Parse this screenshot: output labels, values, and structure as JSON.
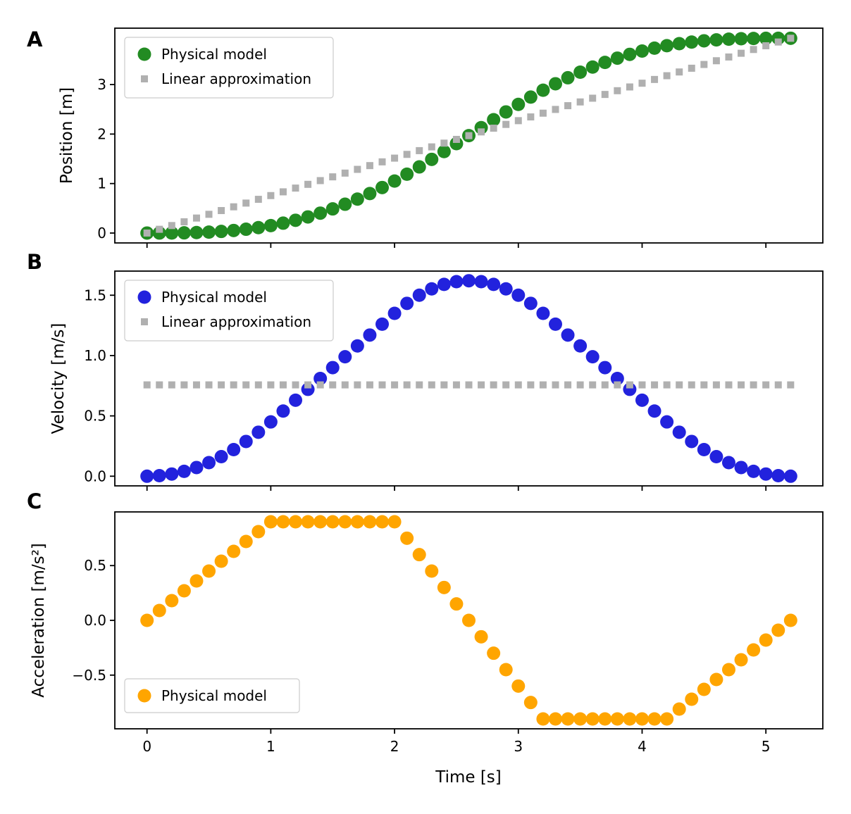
{
  "chart_data": {
    "type": "scatter",
    "xlabel": "Time [s]",
    "xlim": [
      -0.26,
      5.46
    ],
    "xticks": [
      0,
      1,
      2,
      3,
      4,
      5
    ],
    "xtick_labels": [
      "0",
      "1",
      "2",
      "3",
      "4",
      "5"
    ],
    "t": [
      0,
      0.1,
      0.2,
      0.3,
      0.4,
      0.5,
      0.6,
      0.7,
      0.8,
      0.9,
      1,
      1.1,
      1.2,
      1.3,
      1.4,
      1.5,
      1.6,
      1.7,
      1.8,
      1.9,
      2,
      2.1,
      2.2,
      2.3,
      2.4,
      2.5,
      2.6,
      2.7,
      2.8,
      2.9,
      3,
      3.1,
      3.2,
      3.3,
      3.4,
      3.5,
      3.6,
      3.7,
      3.8,
      3.9,
      4,
      4.1,
      4.2,
      4.3,
      4.4,
      4.5,
      4.6,
      4.7,
      4.8,
      4.9,
      5,
      5.1,
      5.2
    ],
    "panels": [
      {
        "letter": "A",
        "ylabel": "Position [m]",
        "ylim": [
          -0.2,
          4.14
        ],
        "yticks": [
          0,
          1,
          2,
          3
        ],
        "ytick_labels": [
          "0",
          "1",
          "2",
          "3"
        ],
        "legend_position": "upper left",
        "series": [
          {
            "name": "Physical model",
            "marker": "circle",
            "color": "#228b22",
            "values": [
              0,
              0.0002,
              0.0012,
              0.004,
              0.0096,
              0.0188,
              0.0324,
              0.0514,
              0.0768,
              0.1094,
              0.15,
              0.1995,
              0.258,
              0.3255,
              0.402,
              0.4875,
              0.582,
              0.6855,
              0.798,
              0.9195,
              1.05,
              1.1893,
              1.336,
              1.4888,
              1.646,
              1.8063,
              1.968,
              2.1298,
              2.29,
              2.4473,
              2.6,
              2.7468,
              2.886,
              3.0165,
              3.138,
              3.2505,
              3.354,
              3.4485,
              3.534,
              3.6105,
              3.678,
              3.7365,
              3.786,
              3.8267,
              3.8592,
              3.8846,
              3.9036,
              3.9173,
              3.9264,
              3.932,
              3.9348,
              3.9359,
              3.936
            ]
          },
          {
            "name": "Linear approximation",
            "marker": "square",
            "color": "#b0b0b0",
            "values": [
              0,
              0.0757,
              0.1514,
              0.2271,
              0.3028,
              0.3785,
              0.4542,
              0.5298,
              0.6055,
              0.6812,
              0.7569,
              0.8326,
              0.9083,
              0.984,
              1.0597,
              1.1354,
              1.2111,
              1.2868,
              1.3625,
              1.4382,
              1.5138,
              1.5895,
              1.6652,
              1.7409,
              1.8166,
              1.8923,
              1.968,
              2.0437,
              2.1194,
              2.1951,
              2.2708,
              2.3465,
              2.4222,
              2.4978,
              2.5735,
              2.6492,
              2.7249,
              2.8006,
              2.8763,
              2.952,
              3.0277,
              3.1034,
              3.1791,
              3.2548,
              3.3305,
              3.4062,
              3.4818,
              3.5575,
              3.6332,
              3.7089,
              3.7846,
              3.8603,
              3.936
            ]
          }
        ]
      },
      {
        "letter": "B",
        "ylabel": "Velocity [m/s]",
        "ylim": [
          -0.08,
          1.7
        ],
        "yticks": [
          0,
          0.5,
          1.0,
          1.5
        ],
        "ytick_labels": [
          "0.0",
          "0.5",
          "1.0",
          "1.5"
        ],
        "legend_position": "upper left",
        "series": [
          {
            "name": "Physical model",
            "marker": "circle",
            "color": "#2222dd",
            "values": [
              0,
              0.0045,
              0.018,
              0.0405,
              0.072,
              0.1125,
              0.162,
              0.2205,
              0.288,
              0.3645,
              0.45,
              0.54,
              0.63,
              0.72,
              0.81,
              0.9,
              0.99,
              1.08,
              1.17,
              1.26,
              1.35,
              1.4325,
              1.5,
              1.5525,
              1.59,
              1.6125,
              1.62,
              1.6125,
              1.59,
              1.5525,
              1.5,
              1.4325,
              1.35,
              1.26,
              1.17,
              1.08,
              0.99,
              0.9,
              0.81,
              0.72,
              0.63,
              0.54,
              0.45,
              0.3645,
              0.288,
              0.2205,
              0.162,
              0.1125,
              0.072,
              0.0405,
              0.018,
              0.0045,
              0
            ]
          },
          {
            "name": "Linear approximation",
            "marker": "square",
            "color": "#b0b0b0",
            "values": [
              0.757,
              0.757,
              0.757,
              0.757,
              0.757,
              0.757,
              0.757,
              0.757,
              0.757,
              0.757,
              0.757,
              0.757,
              0.757,
              0.757,
              0.757,
              0.757,
              0.757,
              0.757,
              0.757,
              0.757,
              0.757,
              0.757,
              0.757,
              0.757,
              0.757,
              0.757,
              0.757,
              0.757,
              0.757,
              0.757,
              0.757,
              0.757,
              0.757,
              0.757,
              0.757,
              0.757,
              0.757,
              0.757,
              0.757,
              0.757,
              0.757,
              0.757,
              0.757,
              0.757,
              0.757,
              0.757,
              0.757,
              0.757,
              0.757,
              0.757,
              0.757,
              0.757,
              0.757
            ]
          }
        ]
      },
      {
        "letter": "C",
        "ylabel": "Acceleration [m/s²]",
        "ylim": [
          -0.99,
          0.99
        ],
        "yticks": [
          -0.5,
          0,
          0.5
        ],
        "ytick_labels": [
          "−0.5",
          "0.0",
          "0.5"
        ],
        "legend_position": "lower left",
        "series": [
          {
            "name": "Physical model",
            "marker": "circle",
            "color": "#ffa500",
            "values": [
              0,
              0.09,
              0.18,
              0.27,
              0.36,
              0.45,
              0.54,
              0.63,
              0.72,
              0.81,
              0.9,
              0.9,
              0.9,
              0.9,
              0.9,
              0.9,
              0.9,
              0.9,
              0.9,
              0.9,
              0.9,
              0.75,
              0.6,
              0.45,
              0.3,
              0.15,
              0,
              -0.15,
              -0.3,
              -0.45,
              -0.6,
              -0.75,
              -0.9,
              -0.9,
              -0.9,
              -0.9,
              -0.9,
              -0.9,
              -0.9,
              -0.9,
              -0.9,
              -0.9,
              -0.9,
              -0.81,
              -0.72,
              -0.63,
              -0.54,
              -0.45,
              -0.36,
              -0.27,
              -0.18,
              -0.09,
              0
            ]
          }
        ]
      }
    ]
  }
}
